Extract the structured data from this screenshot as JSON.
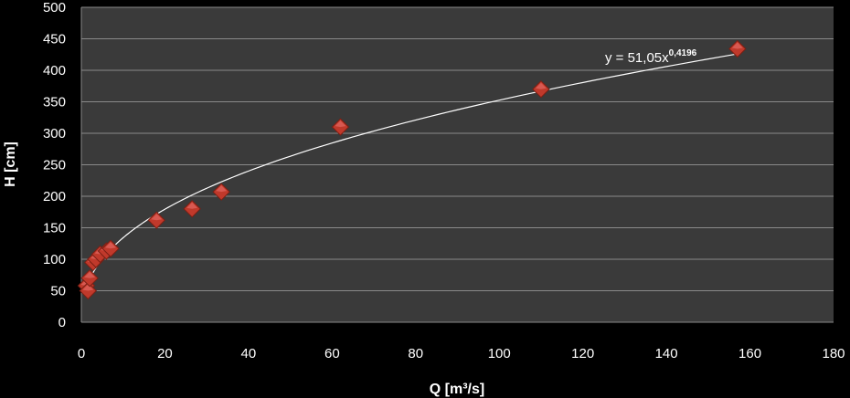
{
  "chart_data": {
    "type": "scatter",
    "xlabel": "Q [m³/s]",
    "ylabel": "H [cm]",
    "xlim": [
      0,
      180
    ],
    "ylim": [
      0,
      500
    ],
    "xticks": [
      0,
      20,
      40,
      60,
      80,
      100,
      120,
      140,
      160,
      180
    ],
    "yticks": [
      0,
      50,
      100,
      150,
      200,
      250,
      300,
      350,
      400,
      450,
      500
    ],
    "grid": true,
    "legend": "none",
    "colors": {
      "plot_bg": "#3a3a3a",
      "page_bg": "#000000",
      "marker": "#c0392b",
      "gridline": "#8a8a8a",
      "trendline": "#ffffff"
    },
    "points": [
      {
        "x": 1.2,
        "y": 58
      },
      {
        "x": 1.6,
        "y": 50
      },
      {
        "x": 2.0,
        "y": 70
      },
      {
        "x": 2.8,
        "y": 95
      },
      {
        "x": 3.5,
        "y": 100
      },
      {
        "x": 4.5,
        "y": 108
      },
      {
        "x": 6.0,
        "y": 113
      },
      {
        "x": 7.0,
        "y": 117
      },
      {
        "x": 18.0,
        "y": 162
      },
      {
        "x": 26.5,
        "y": 180
      },
      {
        "x": 33.5,
        "y": 207
      },
      {
        "x": 62.0,
        "y": 310
      },
      {
        "x": 110.0,
        "y": 370
      },
      {
        "x": 157.0,
        "y": 434
      }
    ],
    "trendline": {
      "type": "power",
      "coefficient": 51.05,
      "exponent": 0.4196,
      "x_from": 1,
      "x_to": 157,
      "label_main": "y = 51,05x",
      "label_exp": "0,4196"
    }
  }
}
